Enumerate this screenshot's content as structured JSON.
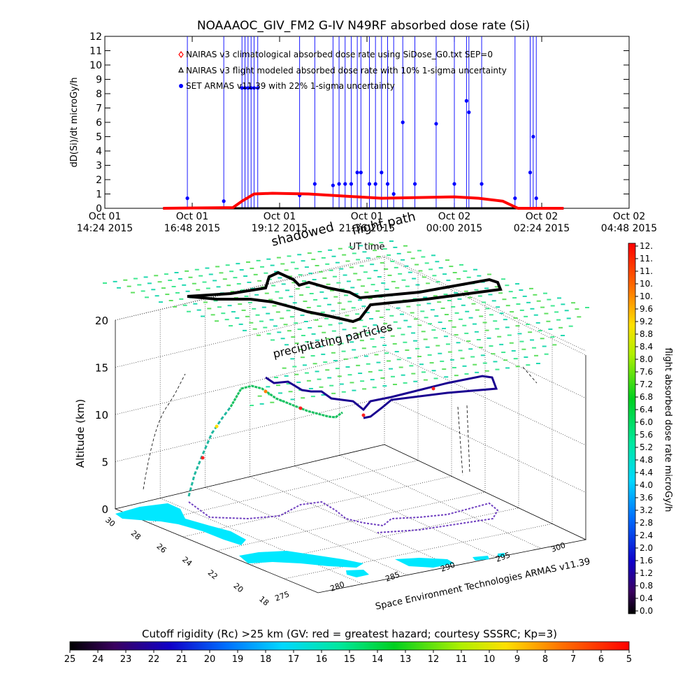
{
  "chart_data": [
    {
      "type": "line",
      "title": "NOAAAOC_GIV_FM2 G-IV    N49RF  absorbed dose rate (Si)",
      "xlabel": "UT time",
      "ylabel": "dD(Si)/dt microGy/h",
      "ylim": [
        0,
        12
      ],
      "yticks": [
        0,
        1,
        2,
        3,
        4,
        5,
        6,
        7,
        8,
        9,
        10,
        11,
        12
      ],
      "xlim": [
        "2015-10-01T14:24",
        "2015-10-02T04:48"
      ],
      "xticks": [
        {
          "date": "2015-10-01T14:24",
          "line1": "Oct 01",
          "line2": "14:24 2015"
        },
        {
          "date": "2015-10-01T16:48",
          "line1": "Oct 01",
          "line2": "16:48 2015"
        },
        {
          "date": "2015-10-01T19:12",
          "line1": "Oct 01",
          "line2": "19:12 2015"
        },
        {
          "date": "2015-10-01T21:36",
          "line1": "Oct 01",
          "line2": "21:36 2015"
        },
        {
          "date": "2015-10-02T00:00",
          "line1": "Oct 02",
          "line2": "00:00 2015"
        },
        {
          "date": "2015-10-02T02:24",
          "line1": "Oct 02",
          "line2": "02:24 2015"
        },
        {
          "date": "2015-10-02T04:48",
          "line1": "Oct 02",
          "line2": "04:48 2015"
        }
      ],
      "legend_placement": "top-left",
      "series": [
        {
          "name": "NAIRAS v3 climatological absorbed dose rate using SiDose_G0.txt SEP=0",
          "color": "#ff0000",
          "marker": "diamond"
        },
        {
          "name": "NAIRAS v3 flight modeled absorbed dose rate with 10% 1-sigma uncertainty",
          "color": "#000000",
          "marker": "triangle",
          "points": [
            [
              "2015-10-01T16:00",
              0
            ],
            [
              "2015-10-01T17:55",
              0.05
            ],
            [
              "2015-10-01T18:10",
              0.5
            ],
            [
              "2015-10-01T18:30",
              1.0
            ],
            [
              "2015-10-01T19:00",
              1.05
            ],
            [
              "2015-10-01T20:00",
              1.0
            ],
            [
              "2015-10-01T21:00",
              0.85
            ],
            [
              "2015-10-01T22:00",
              0.7
            ],
            [
              "2015-10-01T23:00",
              0.75
            ],
            [
              "2015-10-02T00:00",
              0.8
            ],
            [
              "2015-10-02T00:40",
              0.7
            ],
            [
              "2015-10-02T01:20",
              0.5
            ],
            [
              "2015-10-02T01:45",
              0.0
            ],
            [
              "2015-10-02T03:00",
              0.0
            ]
          ]
        },
        {
          "name": "SET ARMAS v11.39 with 22% 1-sigma uncertainty",
          "color": "#0000ff",
          "marker": "circle",
          "points": [
            [
              "2015-10-01T16:40",
              0.7
            ],
            [
              "2015-10-01T17:40",
              0.5
            ],
            [
              "2015-10-01T18:10",
              8.4
            ],
            [
              "2015-10-01T18:15",
              8.4
            ],
            [
              "2015-10-01T18:20",
              8.4
            ],
            [
              "2015-10-01T18:25",
              8.4
            ],
            [
              "2015-10-01T18:30",
              8.4
            ],
            [
              "2015-10-01T18:36",
              8.4
            ],
            [
              "2015-10-01T19:45",
              0.9
            ],
            [
              "2015-10-01T20:10",
              1.7
            ],
            [
              "2015-10-01T20:40",
              1.6
            ],
            [
              "2015-10-01T20:50",
              1.7
            ],
            [
              "2015-10-01T21:00",
              1.7
            ],
            [
              "2015-10-01T21:10",
              1.7
            ],
            [
              "2015-10-01T21:20",
              2.5
            ],
            [
              "2015-10-01T21:26",
              2.5
            ],
            [
              "2015-10-01T21:40",
              1.7
            ],
            [
              "2015-10-01T21:50",
              1.7
            ],
            [
              "2015-10-01T22:00",
              2.5
            ],
            [
              "2015-10-01T22:10",
              1.7
            ],
            [
              "2015-10-01T22:20",
              1.0
            ],
            [
              "2015-10-01T22:35",
              6.0
            ],
            [
              "2015-10-01T22:55",
              1.7
            ],
            [
              "2015-10-01T23:30",
              5.9
            ],
            [
              "2015-10-02T00:00",
              1.7
            ],
            [
              "2015-10-02T00:20",
              7.5
            ],
            [
              "2015-10-02T00:24",
              6.7
            ],
            [
              "2015-10-02T00:45",
              1.7
            ],
            [
              "2015-10-02T01:40",
              0.7
            ],
            [
              "2015-10-02T02:05",
              2.5
            ],
            [
              "2015-10-02T02:10",
              5.0
            ],
            [
              "2015-10-02T02:15",
              0.7
            ]
          ]
        }
      ],
      "annotations": [
        "shadowed",
        "flight path"
      ]
    },
    {
      "type": "scatter",
      "title": "",
      "xlabel": "",
      "ylabel": "",
      "zlabel": "Altitude (km)",
      "zlim": [
        0,
        20
      ],
      "zticks": [
        0,
        5,
        10,
        15,
        20
      ],
      "lat_ticks": [
        "30",
        "28",
        "26",
        "24",
        "22",
        "20",
        "18"
      ],
      "lon_ticks": [
        "275",
        "280",
        "285",
        "290",
        "295",
        "300"
      ],
      "annotations": [
        "precipitating particles",
        "Space Environment Technologies ARMAS v11.39"
      ],
      "colorbar": {
        "label": "flight absorbed dose rate microGy/h",
        "range": [
          0,
          12
        ],
        "tick_labels": [
          "0.0",
          "0.4",
          "0.8",
          "1.2",
          "1.6",
          "2.0",
          "2.4",
          "2.8",
          "3.2",
          "3.6",
          "4.0",
          "4.4",
          "4.8",
          "5.2",
          "5.6",
          "6.0",
          "6.4",
          "6.8",
          "7.2",
          "7.6",
          "8.0",
          "8.4",
          "8.8",
          "9.2",
          "9.6",
          "10.",
          "10.",
          "11.",
          "11.",
          "12."
        ]
      }
    },
    {
      "type": "heatmap",
      "colorbar": {
        "label": "Cutoff rigidity (Rc) >25 km (GV: red = greatest hazard; courtesy SSSRC; Kp=3)",
        "range": [
          25,
          5
        ],
        "tick_labels": [
          "25",
          "24",
          "23",
          "22",
          "21",
          "20",
          "19",
          "18",
          "17",
          "16",
          "15",
          "14",
          "13",
          "12",
          "11",
          "10",
          "9",
          "8",
          "7",
          "6",
          "5"
        ]
      }
    }
  ]
}
